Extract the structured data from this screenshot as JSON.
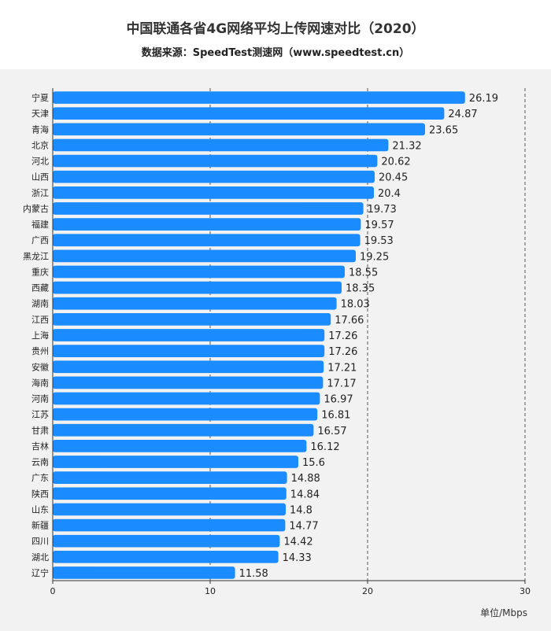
{
  "title": "中国联通各省4G网络平均上传网速对比（2020）",
  "subtitle": "数据来源：SpeedTest测速网（www.speedtest.cn）",
  "unit_label": "单位/Mbps",
  "colors": {
    "bar": "#1a8cff",
    "background": "#f2f2f2",
    "grid": "#555555"
  },
  "chart_data": {
    "type": "bar",
    "orientation": "horizontal",
    "title": "中国联通各省4G网络平均上传网速对比（2020）",
    "xlabel": "单位/Mbps",
    "ylabel": "",
    "xlim": [
      0,
      30
    ],
    "ticks": [
      0,
      10,
      20,
      30
    ],
    "grid": true,
    "categories": [
      "宁夏",
      "天津",
      "青海",
      "北京",
      "河北",
      "山西",
      "浙江",
      "内蒙古",
      "福建",
      "广西",
      "黑龙江",
      "重庆",
      "西藏",
      "湖南",
      "江西",
      "上海",
      "贵州",
      "安徽",
      "海南",
      "河南",
      "江苏",
      "甘肃",
      "吉林",
      "云南",
      "广东",
      "陕西",
      "山东",
      "新疆",
      "四川",
      "湖北",
      "辽宁"
    ],
    "values": [
      26.19,
      24.87,
      23.65,
      21.32,
      20.62,
      20.45,
      20.4,
      19.73,
      19.57,
      19.53,
      19.25,
      18.55,
      18.35,
      18.03,
      17.66,
      17.26,
      17.26,
      17.21,
      17.17,
      16.97,
      16.81,
      16.57,
      16.12,
      15.6,
      14.88,
      14.84,
      14.8,
      14.77,
      14.42,
      14.33,
      11.58
    ]
  }
}
